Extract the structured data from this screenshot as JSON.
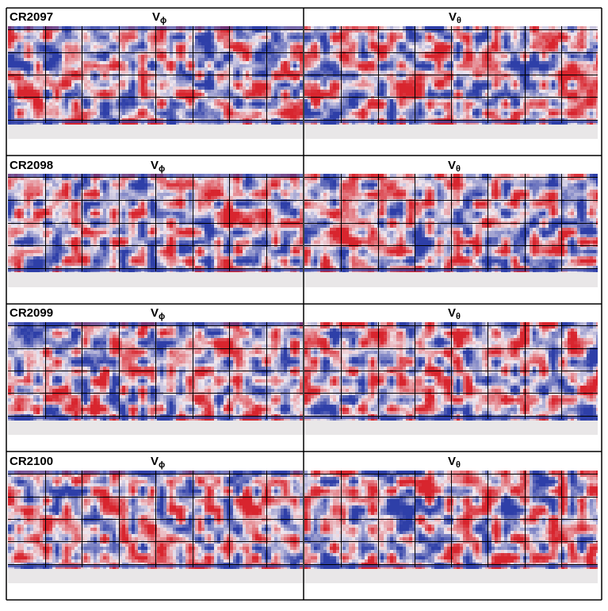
{
  "panels": [
    {
      "carrington_rotation": "CR2097",
      "components": [
        {
          "label_base": "V",
          "label_sub": "ϕ"
        },
        {
          "label_base": "V",
          "label_sub": "θ"
        }
      ]
    },
    {
      "carrington_rotation": "CR2098",
      "components": [
        {
          "label_base": "V",
          "label_sub": "ϕ"
        },
        {
          "label_base": "V",
          "label_sub": "θ"
        }
      ]
    },
    {
      "carrington_rotation": "CR2099",
      "components": [
        {
          "label_base": "V",
          "label_sub": "ϕ"
        },
        {
          "label_base": "V",
          "label_sub": "θ"
        }
      ]
    },
    {
      "carrington_rotation": "CR2100",
      "components": [
        {
          "label_base": "V",
          "label_sub": "ϕ"
        },
        {
          "label_base": "V",
          "label_sub": "θ"
        }
      ]
    }
  ],
  "colors": {
    "positive": "#d8252e",
    "negative": "#2e3fa8",
    "neutral": "#f1e8ee",
    "background_band": "#e9e7e8",
    "grid": "#000000"
  }
}
